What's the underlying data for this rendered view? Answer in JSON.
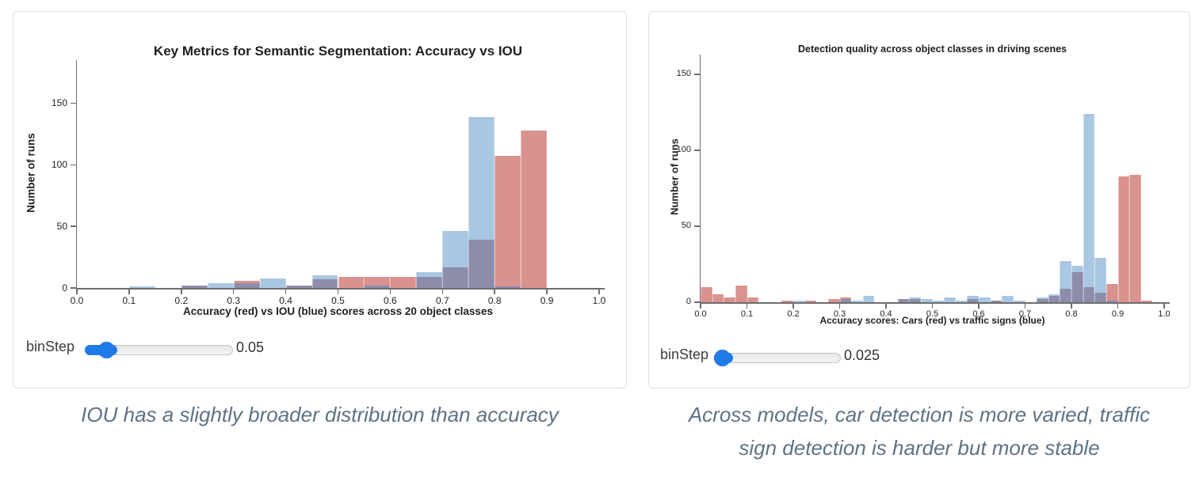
{
  "colors": {
    "red_bar": "#d9928e",
    "blue_bar": "#a9c7e2",
    "overlap_bar": "#8c8cab",
    "axis": "#6e6e6e",
    "text": "#1f1f1f",
    "caption_text": "#5d7285",
    "slider_accent": "#1f7be8"
  },
  "charts": [
    {
      "title": "Key Metrics for Semantic Segmentation: Accuracy vs IOU",
      "ylabel": "Number of runs",
      "xlabel": "Accuracy (red) vs IOU (blue) scores across 20 object classes",
      "slider": {
        "label": "binStep",
        "value": "0.05",
        "fraction": 0.144
      },
      "caption_lines": [
        "IOU has a slightly broader distribution than accuracy"
      ],
      "chart_data": {
        "type": "bar",
        "subtype": "overlaid-histogram",
        "title": "Key Metrics for Semantic Segmentation: Accuracy vs IOU",
        "xlabel": "Accuracy (red) vs IOU (blue) scores across 20 object classes",
        "ylabel": "Number of runs",
        "bin_step": 0.05,
        "xlim": [
          0,
          1
        ],
        "ylim": [
          0,
          185
        ],
        "xticks": [
          0,
          0.1,
          0.2,
          0.3,
          0.4,
          0.5,
          0.6,
          0.7,
          0.8,
          0.9,
          1.0
        ],
        "yticks": [
          0,
          50,
          100,
          150
        ],
        "series": [
          {
            "name": "Accuracy",
            "color_role": "red"
          },
          {
            "name": "IOU",
            "color_role": "blue"
          }
        ],
        "bins": [
          {
            "x": 0.1,
            "red": 0,
            "blue": 1
          },
          {
            "x": 0.2,
            "red": 2,
            "blue": 2
          },
          {
            "x": 0.25,
            "red": 0,
            "blue": 4
          },
          {
            "x": 0.3,
            "red": 6,
            "blue": 4
          },
          {
            "x": 0.35,
            "red": 0,
            "blue": 8
          },
          {
            "x": 0.4,
            "red": 2,
            "blue": 2
          },
          {
            "x": 0.45,
            "red": 7,
            "blue": 10
          },
          {
            "x": 0.5,
            "red": 9,
            "blue": 0
          },
          {
            "x": 0.55,
            "red": 9,
            "blue": 2
          },
          {
            "x": 0.6,
            "red": 9,
            "blue": 0
          },
          {
            "x": 0.65,
            "red": 9,
            "blue": 13
          },
          {
            "x": 0.7,
            "red": 17,
            "blue": 46
          },
          {
            "x": 0.75,
            "red": 39,
            "blue": 139
          },
          {
            "x": 0.8,
            "red": 107,
            "blue": 1
          },
          {
            "x": 0.85,
            "red": 128,
            "blue": 0
          }
        ]
      }
    },
    {
      "title": "Detection quality across object classes in driving scenes",
      "ylabel": "Number of runs",
      "xlabel": "Accuracy scores: Cars (red) vs traffic signs (blue)",
      "slider": {
        "label": "binStep",
        "value": "0.025",
        "fraction": 0.062
      },
      "caption_lines": [
        "Across models, car detection is more varied, traffic",
        "sign detection is harder but more stable"
      ],
      "chart_data": {
        "type": "bar",
        "subtype": "overlaid-histogram",
        "title": "Detection quality across object classes in driving scenes",
        "xlabel": "Accuracy scores: Cars (red) vs traffic signs (blue)",
        "ylabel": "Number of runs",
        "bin_step": 0.025,
        "xlim": [
          0,
          1
        ],
        "ylim": [
          0,
          163
        ],
        "xticks": [
          0,
          0.1,
          0.2,
          0.3,
          0.4,
          0.5,
          0.6,
          0.7,
          0.8,
          0.9,
          1.0
        ],
        "yticks": [
          0,
          50,
          100,
          150
        ],
        "series": [
          {
            "name": "Cars",
            "color_role": "red"
          },
          {
            "name": "Traffic signs",
            "color_role": "blue"
          }
        ],
        "bins": [
          {
            "x": 0.0,
            "red": 10,
            "blue": 0
          },
          {
            "x": 0.025,
            "red": 5,
            "blue": 0
          },
          {
            "x": 0.05,
            "red": 3,
            "blue": 0
          },
          {
            "x": 0.075,
            "red": 11,
            "blue": 0
          },
          {
            "x": 0.1,
            "red": 3,
            "blue": 0
          },
          {
            "x": 0.175,
            "red": 1,
            "blue": 0
          },
          {
            "x": 0.2,
            "red": 0,
            "blue": 1
          },
          {
            "x": 0.225,
            "red": 1,
            "blue": 0
          },
          {
            "x": 0.275,
            "red": 2,
            "blue": 0
          },
          {
            "x": 0.3,
            "red": 3,
            "blue": 2
          },
          {
            "x": 0.325,
            "red": 0,
            "blue": 1
          },
          {
            "x": 0.35,
            "red": 0,
            "blue": 4
          },
          {
            "x": 0.425,
            "red": 2,
            "blue": 2
          },
          {
            "x": 0.45,
            "red": 2,
            "blue": 3
          },
          {
            "x": 0.475,
            "red": 0,
            "blue": 2
          },
          {
            "x": 0.5,
            "red": 0,
            "blue": 1
          },
          {
            "x": 0.525,
            "red": 0,
            "blue": 3
          },
          {
            "x": 0.55,
            "red": 0,
            "blue": 1
          },
          {
            "x": 0.575,
            "red": 2,
            "blue": 4
          },
          {
            "x": 0.6,
            "red": 0,
            "blue": 3
          },
          {
            "x": 0.625,
            "red": 1,
            "blue": 1
          },
          {
            "x": 0.65,
            "red": 0,
            "blue": 4
          },
          {
            "x": 0.675,
            "red": 0,
            "blue": 1
          },
          {
            "x": 0.725,
            "red": 2,
            "blue": 3
          },
          {
            "x": 0.75,
            "red": 4,
            "blue": 5
          },
          {
            "x": 0.775,
            "red": 9,
            "blue": 27
          },
          {
            "x": 0.8,
            "red": 20,
            "blue": 24
          },
          {
            "x": 0.825,
            "red": 10,
            "blue": 124
          },
          {
            "x": 0.85,
            "red": 6,
            "blue": 29
          },
          {
            "x": 0.875,
            "red": 12,
            "blue": 1
          },
          {
            "x": 0.9,
            "red": 83,
            "blue": 0
          },
          {
            "x": 0.925,
            "red": 84,
            "blue": 0
          },
          {
            "x": 0.95,
            "red": 1,
            "blue": 0
          }
        ]
      }
    }
  ]
}
